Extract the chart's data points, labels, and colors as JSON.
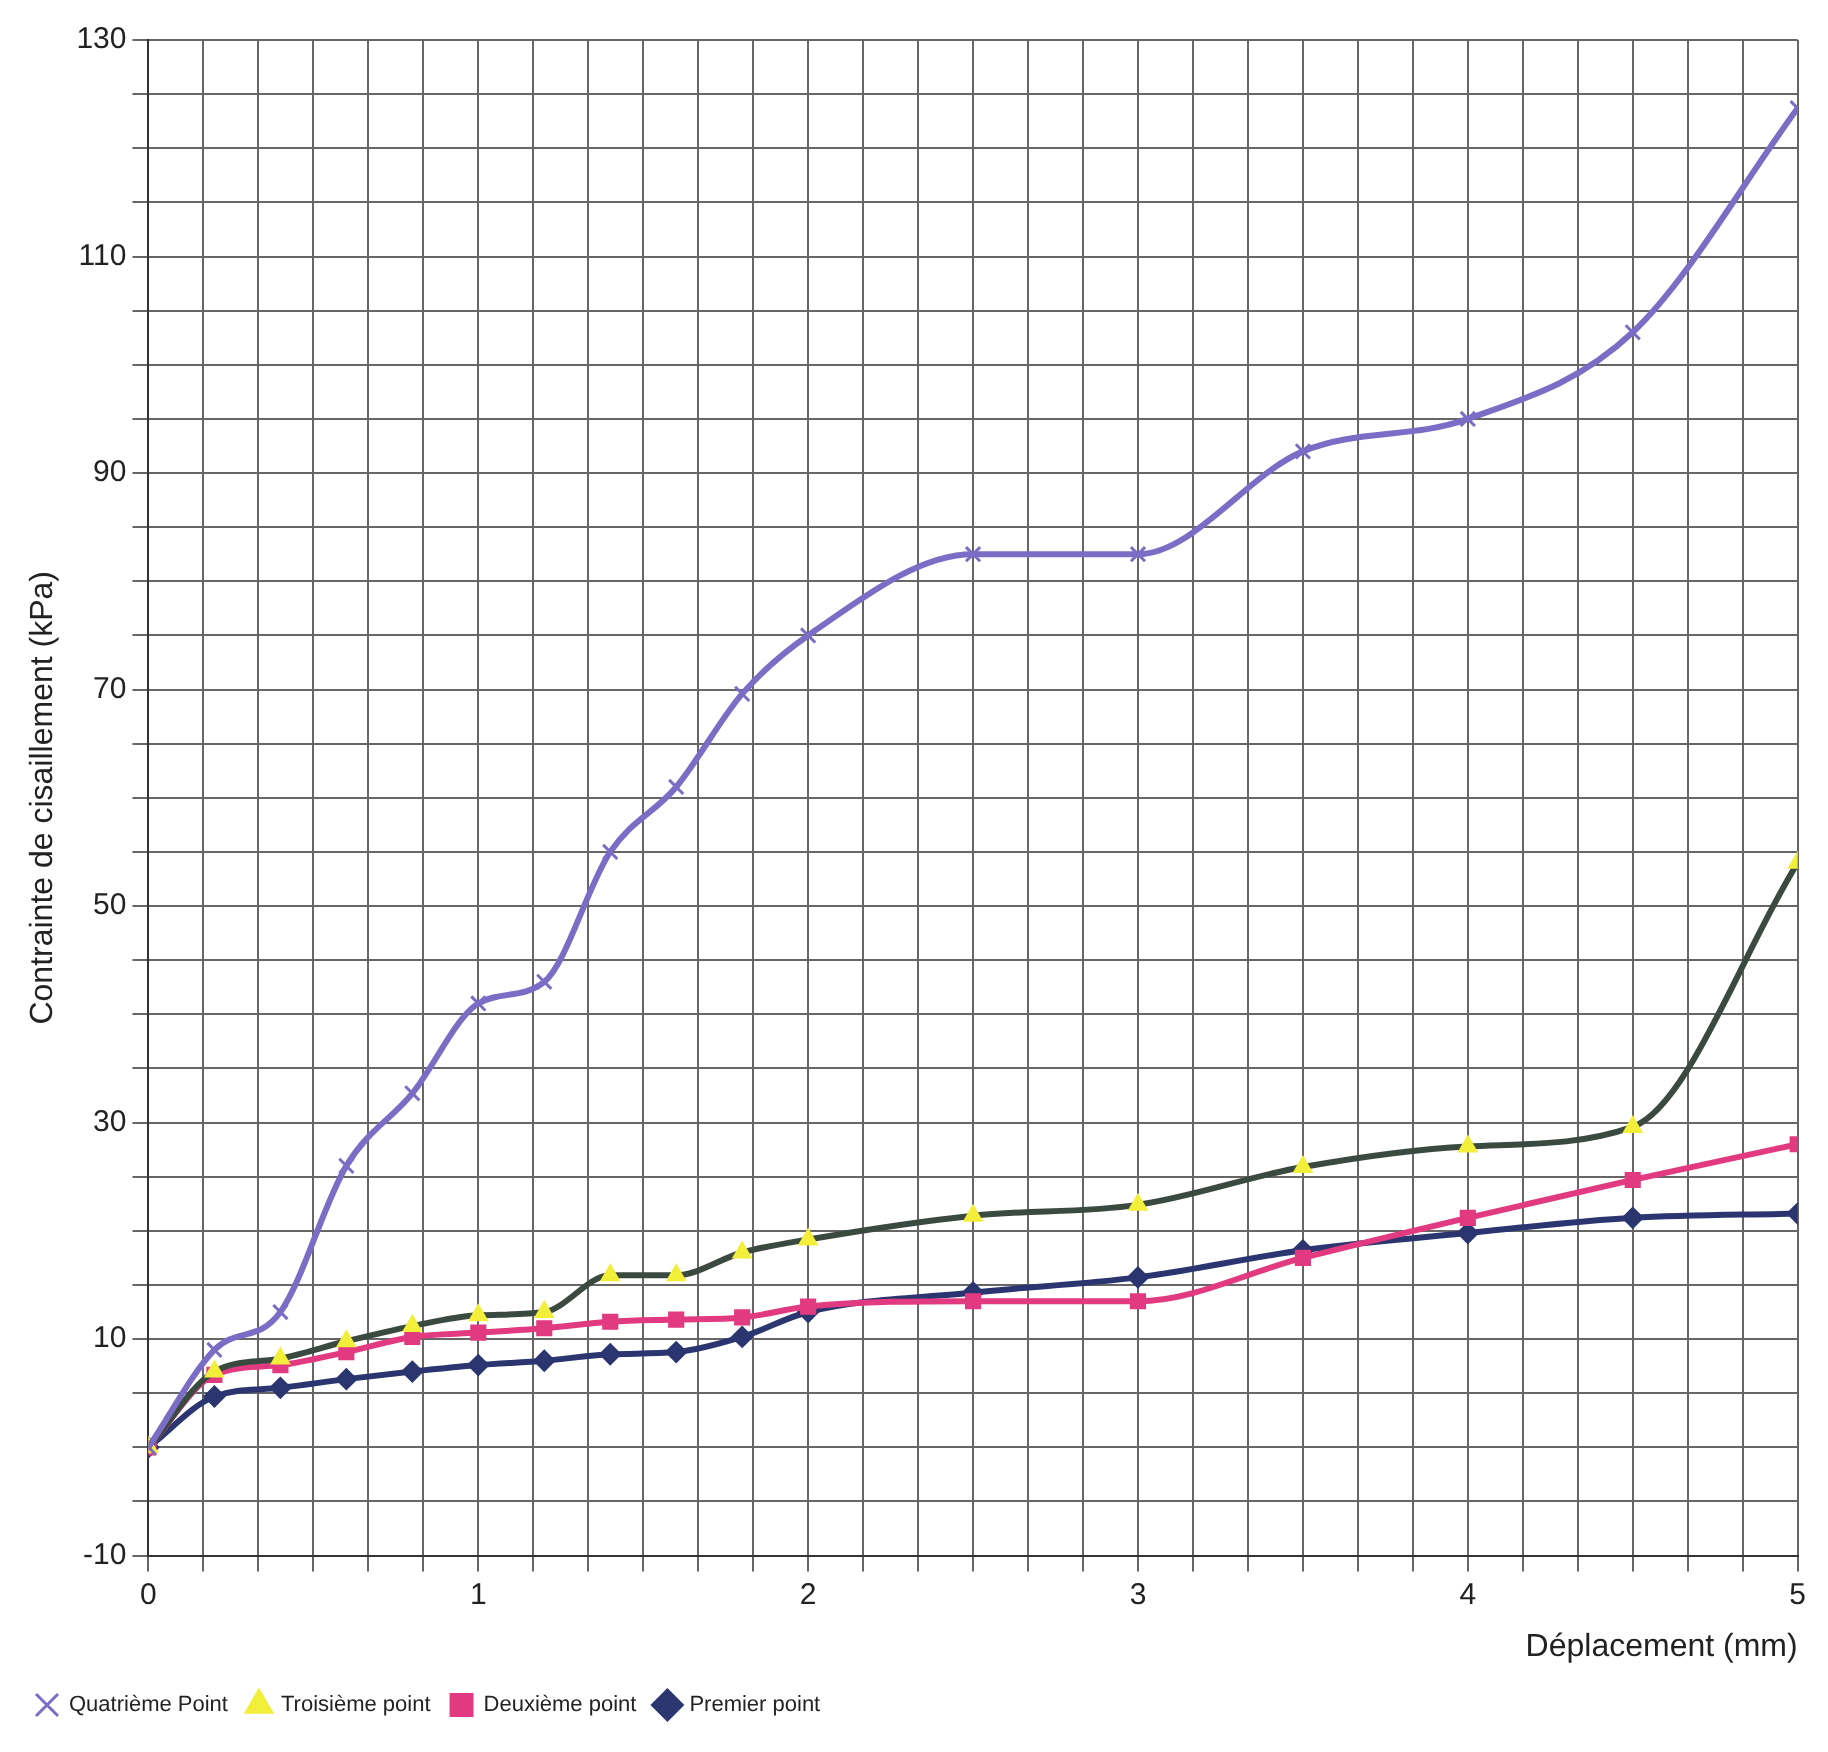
{
  "chart_data": {
    "type": "line",
    "xlabel": "Déplacement (mm)",
    "ylabel": "Contrainte de cisaillement (kPa)",
    "x": [
      0,
      0.2,
      0.4,
      0.6,
      0.8,
      1,
      1.2,
      1.4,
      1.6,
      1.8,
      2,
      2.5,
      3,
      3.5,
      4,
      4.5,
      5
    ],
    "series": [
      {
        "name": "Premier point",
        "color": "#2b3670",
        "marker": "diamond",
        "values": [
          0,
          4.7,
          5.5,
          6.3,
          7,
          7.6,
          8,
          8.6,
          8.8,
          10.2,
          12.5,
          14.3,
          15.7,
          18.2,
          19.8,
          21.2,
          21.6
        ]
      },
      {
        "name": "Deuxième point",
        "color": "#e23a80",
        "marker": "square",
        "values": [
          0,
          6.7,
          7.6,
          8.8,
          10.2,
          10.6,
          11,
          11.6,
          11.8,
          12,
          13,
          13.5,
          13.5,
          17.5,
          21.2,
          24.7,
          28
        ]
      },
      {
        "name": "Troisième point",
        "color": "#3b4a40",
        "colors": [
          "#f2ee3a",
          "#f2ee3a",
          "#f2ee3a",
          "#f2ee3a",
          "#f2ee3a",
          "#f2ee3a",
          "#f2ee3a",
          "#f2ee3a",
          "#f2ee3a",
          "#f2ee3a",
          "#f2ee3a",
          "#f2ee3a",
          "#f2ee3a",
          "#f2ee3a",
          "#f2ee3a",
          "#f2ee3a",
          "#f2ee3a"
        ],
        "marker": "triangle",
        "values": [
          0,
          7,
          8.2,
          9.8,
          11.2,
          12.2,
          12.5,
          15.9,
          15.9,
          18,
          19.2,
          21.4,
          22.4,
          25.9,
          27.8,
          29.6,
          54
        ]
      },
      {
        "name": "Quatrième Point",
        "color": "#7b6cc6",
        "marker": "cross",
        "values": [
          0,
          9,
          12.5,
          26,
          32.7,
          41,
          43,
          55,
          61,
          69.6,
          75,
          82.5,
          82.5,
          92,
          95,
          103,
          123.7
        ]
      }
    ],
    "xlim": [
      0,
      5
    ],
    "xticks": [
      0,
      {
        "value": 0.1667,
        "label": null
      },
      {
        "value": 0.3333,
        "label": null
      },
      {
        "value": 0.5,
        "label": null
      },
      {
        "value": 0.6667,
        "label": null
      },
      {
        "value": 0.8333,
        "label": null
      },
      1,
      {
        "value": 1.1667,
        "label": null
      },
      {
        "value": 1.3333,
        "label": null
      },
      {
        "value": 1.5,
        "label": null
      },
      {
        "value": 1.6667,
        "label": null
      },
      {
        "value": 1.8333,
        "label": null
      },
      2,
      {
        "value": 2.1667,
        "label": null
      },
      {
        "value": 2.3333,
        "label": null
      },
      {
        "value": 2.5,
        "label": null
      },
      {
        "value": 2.6667,
        "label": null
      },
      {
        "value": 2.8333,
        "label": null
      },
      3,
      {
        "value": 3.1667,
        "label": null
      },
      {
        "value": 3.3333,
        "label": null
      },
      {
        "value": 3.5,
        "label": null
      },
      {
        "value": 3.6667,
        "label": null
      },
      {
        "value": 3.8333,
        "label": null
      },
      4,
      {
        "value": 4.1667,
        "label": null
      },
      {
        "value": 4.3333,
        "label": null
      },
      {
        "value": 4.5,
        "label": null
      },
      {
        "value": 4.6667,
        "label": null
      },
      {
        "value": 4.8333,
        "label": null
      },
      5
    ],
    "ylim": [
      -10,
      130
    ],
    "yticks": [
      -10,
      {
        "value": -5,
        "label": null
      },
      {
        "value": 0,
        "label": null
      },
      {
        "value": 5,
        "label": null
      },
      10,
      {
        "value": 15,
        "label": null
      },
      {
        "value": 20,
        "label": null
      },
      {
        "value": 25,
        "label": null
      },
      30,
      {
        "value": 35,
        "label": null
      },
      {
        "value": 40,
        "label": null
      },
      {
        "value": 45,
        "label": null
      },
      50,
      {
        "value": 55,
        "label": null
      },
      {
        "value": 60,
        "label": null
      },
      {
        "value": 65,
        "label": null
      },
      70,
      {
        "value": 75,
        "label": null
      },
      {
        "value": 80,
        "label": null
      },
      {
        "value": 85,
        "label": null
      },
      90,
      {
        "value": 95,
        "label": null
      },
      {
        "value": 100,
        "label": null
      },
      {
        "value": 105,
        "label": null
      },
      110,
      {
        "value": 115,
        "label": null
      },
      {
        "value": 120,
        "label": null
      },
      {
        "value": 125,
        "label": null
      },
      130
    ],
    "grid": true,
    "legend": "bottom left"
  }
}
